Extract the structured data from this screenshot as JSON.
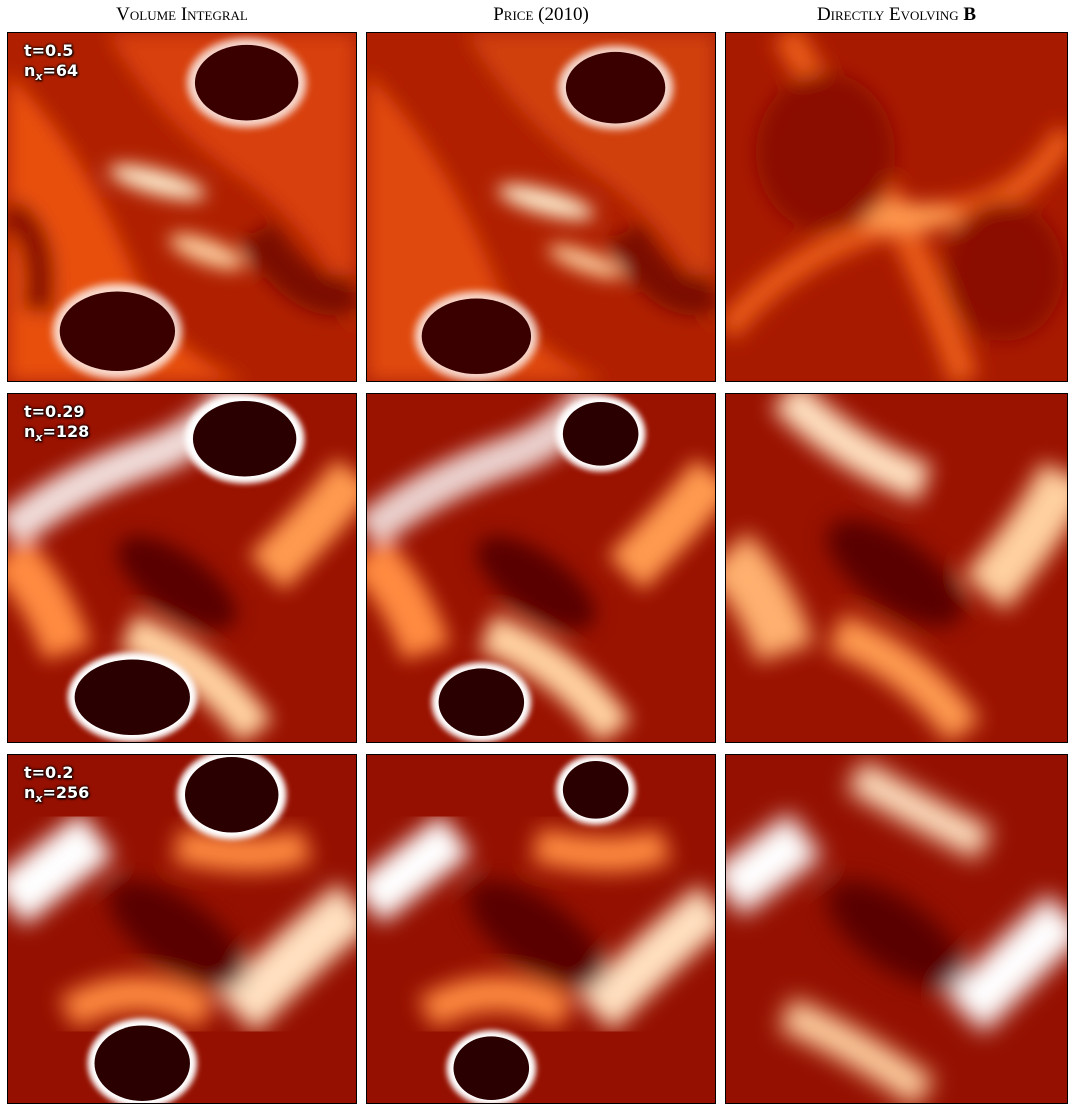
{
  "columns": [
    {
      "title_main": "Volume Integral",
      "title_bold": ""
    },
    {
      "title_main": "Price (2010)",
      "title_bold": ""
    },
    {
      "title_main": "Directly Evolving",
      "title_bold": "B"
    }
  ],
  "rows": [
    {
      "t": "t=0.5",
      "n_prefix": "n",
      "n_sub": "x",
      "n_value": "=64"
    },
    {
      "t": "t=0.29",
      "n_prefix": "n",
      "n_sub": "x",
      "n_value": "=128"
    },
    {
      "t": "t=0.2",
      "n_prefix": "n",
      "n_sub": "x",
      "n_value": "=256"
    }
  ],
  "colormap": [
    "#5a0000",
    "#8b0a00",
    "#c42a00",
    "#f06010",
    "#ffb070",
    "#ffffff"
  ]
}
